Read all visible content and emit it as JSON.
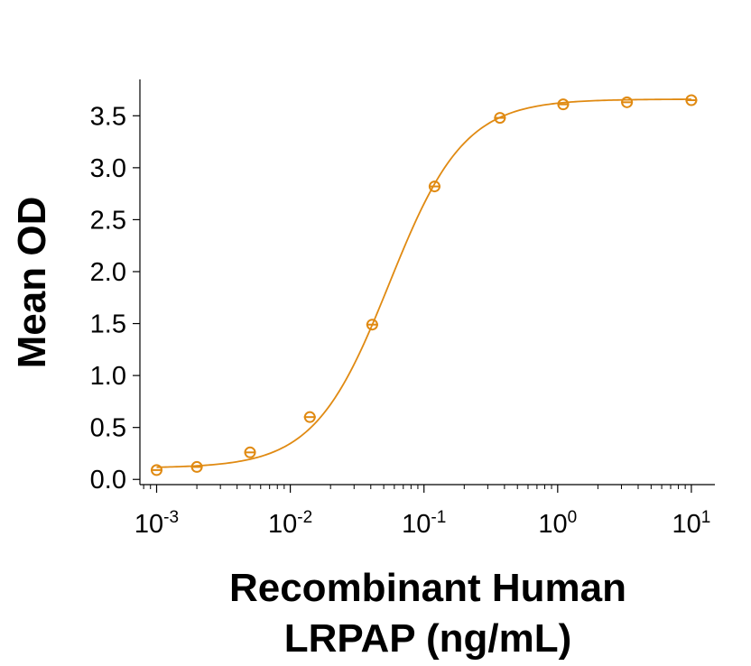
{
  "chart_data": {
    "type": "scatter",
    "title": "",
    "xlabel_lines": [
      "Recombinant Human",
      "LRPAP (ng/mL)"
    ],
    "ylabel": "Mean OD",
    "xscale": "log",
    "xlim": [
      0.00075,
      15
    ],
    "ylim": [
      -0.05,
      3.85
    ],
    "x_ticks": [
      {
        "value": 0.001,
        "base": "10",
        "exp": "-3"
      },
      {
        "value": 0.01,
        "base": "10",
        "exp": "-2"
      },
      {
        "value": 0.1,
        "base": "10",
        "exp": "-1"
      },
      {
        "value": 1,
        "base": "10",
        "exp": "0"
      },
      {
        "value": 10,
        "base": "10",
        "exp": "1"
      }
    ],
    "y_ticks": [
      "0.0",
      "0.5",
      "1.0",
      "1.5",
      "2.0",
      "2.5",
      "3.0",
      "3.5"
    ],
    "grid": false,
    "color": "#e08a12",
    "series": [
      {
        "x": [
          0.001,
          0.002,
          0.005,
          0.014,
          0.041,
          0.12,
          0.37,
          1.1,
          3.3,
          10
        ],
        "y": [
          0.09,
          0.12,
          0.26,
          0.6,
          1.49,
          2.82,
          3.48,
          3.61,
          3.63,
          3.65
        ]
      }
    ],
    "fit": {
      "model": "4PL",
      "bottom": 0.11,
      "top": 3.66,
      "ec50": 0.055,
      "hill": 1.55
    }
  }
}
